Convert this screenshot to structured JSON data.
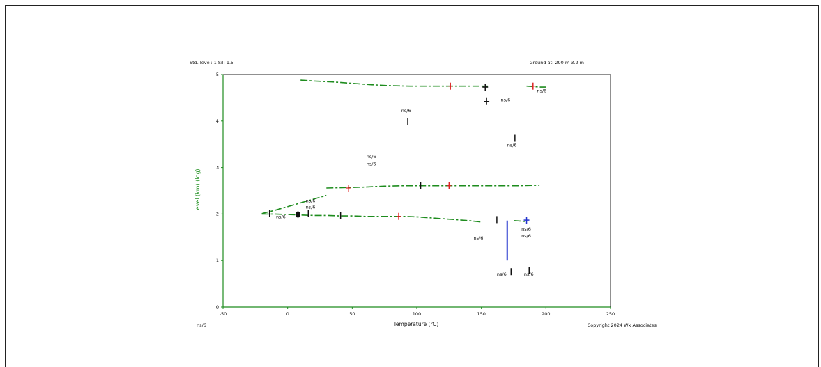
{
  "chart_data": {
    "type": "line",
    "title": "",
    "header_left": "Std. level: 1 Sil: 1.5",
    "header_right": "Ground at: 290 m 3.2 m",
    "footer_left": "ns/6",
    "footer_right": "Copyright 2024 Wx Associates",
    "xlabel": "Temperature (°C)",
    "ylabel": "Level (km) (log)",
    "xlim": [
      -50,
      250
    ],
    "ylim": [
      0,
      5
    ],
    "x_ticks": [
      -50,
      0,
      50,
      100,
      150,
      200,
      250
    ],
    "x_tick_labels": [
      "-50",
      "0",
      "50",
      "100",
      "150",
      "200",
      "250"
    ],
    "y_ticks": [
      0,
      1,
      2,
      3,
      4,
      5
    ],
    "y_tick_labels": [
      "0",
      "1",
      "2",
      "3",
      "4",
      "5"
    ],
    "colors": {
      "series": "#1e8c1e",
      "red_marker": "#dd2222",
      "blue": "#2233cc",
      "axis": "#1e8c1e",
      "text": "#111111"
    },
    "series": [
      {
        "x": [
          10,
          20,
          35,
          50,
          65,
          80,
          95,
          110,
          125,
          140,
          155
        ],
        "y": [
          4.88,
          4.86,
          4.84,
          4.81,
          4.78,
          4.76,
          4.75,
          4.75,
          4.75,
          4.75,
          4.75
        ]
      },
      {
        "x": [
          185,
          190,
          195,
          200
        ],
        "y": [
          4.75,
          4.74,
          4.73,
          4.73
        ]
      },
      {
        "x": [
          30,
          45,
          60,
          75,
          90,
          105,
          120,
          135,
          150,
          165,
          180,
          195
        ],
        "y": [
          2.56,
          2.57,
          2.58,
          2.6,
          2.61,
          2.61,
          2.61,
          2.61,
          2.61,
          2.61,
          2.61,
          2.62
        ]
      },
      {
        "x": [
          -20,
          -10,
          0,
          10,
          20,
          30,
          40,
          50,
          60,
          70,
          80,
          90,
          100,
          110,
          120,
          130,
          140,
          150
        ],
        "y": [
          2.0,
          2.0,
          1.99,
          1.98,
          1.97,
          1.97,
          1.96,
          1.96,
          1.95,
          1.95,
          1.95,
          1.95,
          1.94,
          1.92,
          1.9,
          1.88,
          1.86,
          1.83
        ]
      },
      {
        "x": [
          -20,
          -10,
          0,
          10,
          20,
          30
        ],
        "y": [
          2.01,
          2.08,
          2.16,
          2.24,
          2.32,
          2.4
        ]
      },
      {
        "x": [
          175,
          180,
          185
        ],
        "y": [
          1.86,
          1.85,
          1.84
        ]
      }
    ],
    "red_markers": [
      {
        "x": 126,
        "y": 4.75
      },
      {
        "x": 190,
        "y": 4.75
      },
      {
        "x": 47,
        "y": 2.56
      },
      {
        "x": 125,
        "y": 2.61
      },
      {
        "x": 86,
        "y": 1.95
      }
    ],
    "black_markers": [
      {
        "x": 154,
        "y": 4.42
      },
      {
        "x": 153,
        "y": 4.73
      },
      {
        "x": 93,
        "y": 3.99
      },
      {
        "x": 176,
        "y": 3.63
      },
      {
        "x": 103,
        "y": 2.61
      },
      {
        "x": -14,
        "y": 2.01
      },
      {
        "x": 8,
        "y": 1.99
      },
      {
        "x": 16,
        "y": 2.01
      },
      {
        "x": 41,
        "y": 1.97
      },
      {
        "x": 162,
        "y": 1.88
      },
      {
        "x": 173,
        "y": 0.76
      },
      {
        "x": 187,
        "y": 0.79
      }
    ],
    "blue_line": {
      "x": [
        170,
        170
      ],
      "y": [
        1.86,
        1.0
      ]
    },
    "blue_marker": {
      "x": 185,
      "y": 1.87
    },
    "annotations": [
      {
        "x": 193,
        "y": 4.62,
        "text": "ns/6"
      },
      {
        "x": 88,
        "y": 4.19,
        "text": "ns/6"
      },
      {
        "x": 165,
        "y": 4.42,
        "text": "ns/6"
      },
      {
        "x": 170,
        "y": 3.45,
        "text": "ns/6"
      },
      {
        "x": 61,
        "y": 3.2,
        "text": "ns/6"
      },
      {
        "x": 61,
        "y": 3.05,
        "text": "ns/6"
      },
      {
        "x": 14,
        "y": 2.25,
        "text": "ns/6"
      },
      {
        "x": 14,
        "y": 2.12,
        "text": "ns/6"
      },
      {
        "x": -9,
        "y": 1.91,
        "text": "ns/6"
      },
      {
        "x": 144,
        "y": 1.45,
        "text": "ns/6"
      },
      {
        "x": 181,
        "y": 1.65,
        "text": "ns/6"
      },
      {
        "x": 181,
        "y": 1.5,
        "text": "ns/6"
      },
      {
        "x": 162,
        "y": 0.67,
        "text": "ns/6"
      },
      {
        "x": 183,
        "y": 0.67,
        "text": "ns/6"
      }
    ]
  }
}
